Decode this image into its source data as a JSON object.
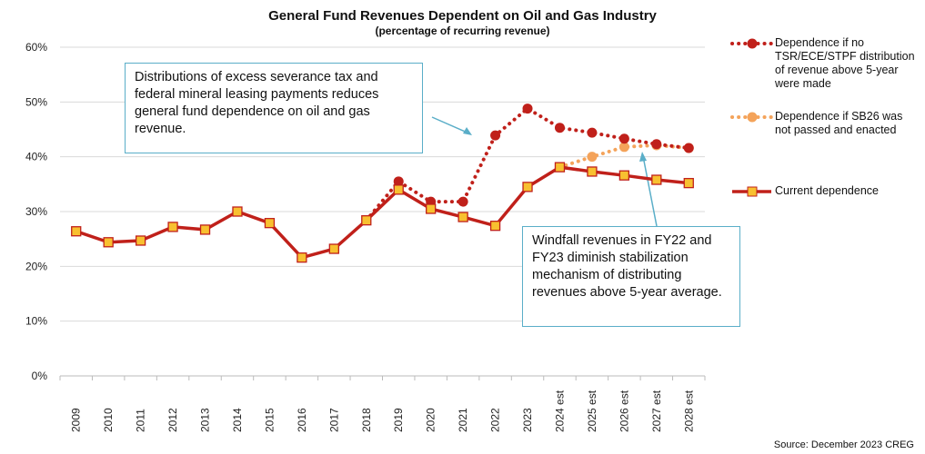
{
  "chart_data": {
    "type": "line",
    "title": "General Fund Revenues Dependent on Oil and Gas Industry",
    "subtitle": "(percentage of recurring revenue)",
    "xlabel": "",
    "ylabel": "",
    "ylim": [
      0,
      60
    ],
    "yticks": [
      "0%",
      "10%",
      "20%",
      "30%",
      "40%",
      "50%",
      "60%"
    ],
    "grid": true,
    "legend_position": "right",
    "categories": [
      "2009",
      "2010",
      "2011",
      "2012",
      "2013",
      "2014",
      "2015",
      "2016",
      "2017",
      "2018",
      "2019",
      "2020",
      "2021",
      "2022",
      "2023",
      "2024 est",
      "2025 est",
      "2026 est",
      "2027 est",
      "2028 est"
    ],
    "series": [
      {
        "name": "Dependence if no TSR/ECE/STPF distribution of revenue above 5-year were made",
        "color": "#c0201a",
        "style": "dotted",
        "values": [
          null,
          null,
          null,
          null,
          null,
          null,
          null,
          null,
          null,
          28.4,
          35.5,
          31.8,
          31.8,
          43.9,
          48.8,
          45.3,
          44.4,
          43.3,
          42.3,
          41.6
        ]
      },
      {
        "name": "Dependence if SB26 was not passed and enacted",
        "color": "#f4a35a",
        "style": "dotted",
        "values": [
          null,
          null,
          null,
          null,
          null,
          null,
          null,
          null,
          null,
          null,
          null,
          null,
          null,
          null,
          null,
          38.1,
          40.0,
          41.8,
          42.1,
          41.6
        ]
      },
      {
        "name": "Current dependence",
        "color": "#c0201a",
        "style": "solid",
        "values": [
          26.4,
          24.4,
          24.7,
          27.2,
          26.7,
          30.0,
          27.9,
          21.6,
          23.2,
          28.4,
          34.0,
          30.5,
          29.0,
          27.4,
          34.5,
          38.1,
          37.3,
          36.6,
          35.8,
          35.2
        ]
      }
    ],
    "annotations": [
      "Distributions of excess severance tax and federal mineral leasing payments reduces general fund dependence on oil and gas revenue.",
      "Windfall revenues in FY22 and FY23 diminish stabilization mechanism of distributing revenues above 5-year average."
    ],
    "source": "Source: December 2023 CREG"
  }
}
